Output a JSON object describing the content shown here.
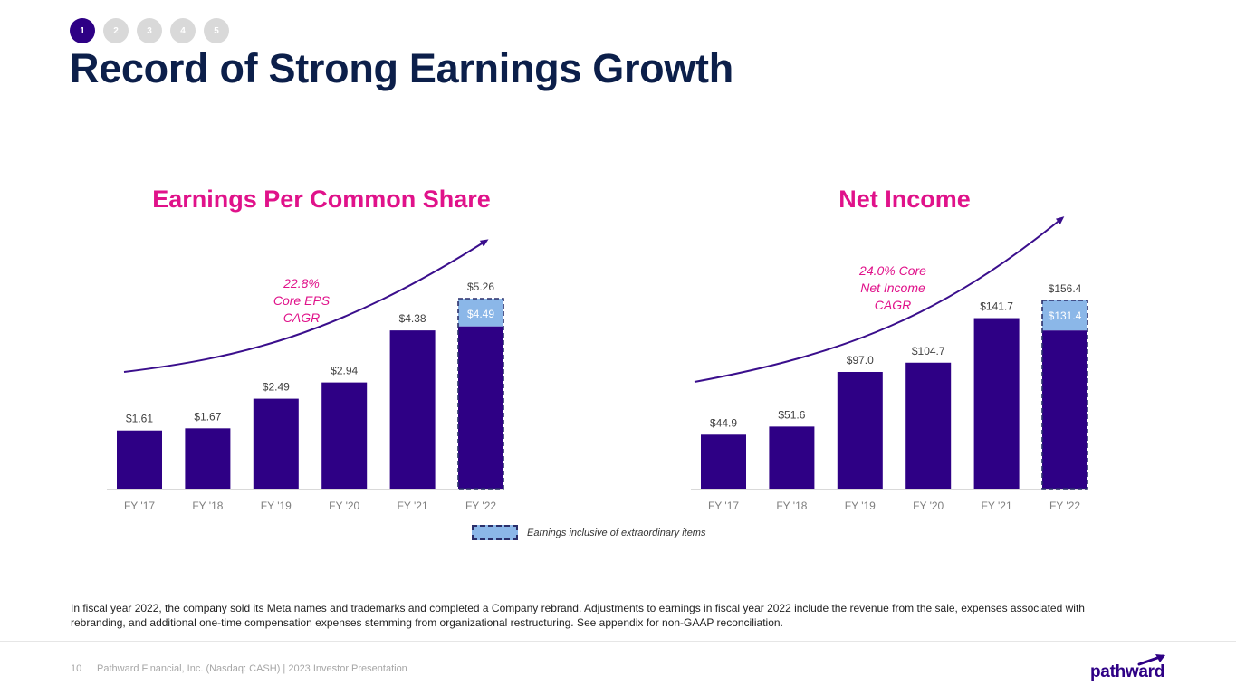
{
  "nav": {
    "steps": [
      "1",
      "2",
      "3",
      "4",
      "5"
    ],
    "active_index": 0
  },
  "page_title": "Record of Strong Earnings Growth",
  "colors": {
    "bar": "#2e0085",
    "highlight": "#8bb7e8",
    "accent": "#e0128a",
    "title": "#0c1f4a",
    "trend": "#3a0e8c"
  },
  "chart_data": [
    {
      "id": "eps",
      "type": "bar",
      "title": "Earnings Per Common Share",
      "categories": [
        "FY '17",
        "FY '18",
        "FY '19",
        "FY '20",
        "FY '21",
        "FY '22"
      ],
      "values": [
        1.61,
        1.67,
        2.49,
        2.94,
        4.38,
        5.26
      ],
      "value_labels": [
        "$1.61",
        "$1.67",
        "$2.49",
        "$2.94",
        "$4.38",
        "$5.26"
      ],
      "core_value": {
        "index": 5,
        "value": 4.49,
        "label": "$4.49"
      },
      "ylim": [
        0,
        5.26
      ],
      "annotation": {
        "lines": [
          "22.8%",
          "Core EPS",
          "CAGR"
        ]
      },
      "trend_arrow": true
    },
    {
      "id": "ni",
      "type": "bar",
      "title": "Net Income",
      "categories": [
        "FY '17",
        "FY '18",
        "FY '19",
        "FY '20",
        "FY '21",
        "FY '22"
      ],
      "values": [
        44.9,
        51.6,
        97.0,
        104.7,
        141.7,
        156.4
      ],
      "value_labels": [
        "$44.9",
        "$51.6",
        "$97.0",
        "$104.7",
        "$141.7",
        "$156.4"
      ],
      "core_value": {
        "index": 5,
        "value": 131.4,
        "label": "$131.4"
      },
      "ylim": [
        0,
        156.4
      ],
      "annotation": {
        "lines": [
          "24.0% Core",
          "Net Income",
          "CAGR"
        ]
      },
      "trend_arrow": true
    }
  ],
  "legend": {
    "label": "Earnings inclusive of extraordinary items"
  },
  "footnote": "In fiscal year 2022, the company sold its Meta names and trademarks and completed a Company rebrand. Adjustments to earnings in fiscal year 2022 include the revenue from the sale, expenses associated with rebranding, and additional one-time compensation expenses stemming from organizational restructuring.  See appendix for non-GAAP reconciliation.",
  "footer": {
    "page_number": "10",
    "text": "Pathward Financial, Inc. (Nasdaq: CASH) | 2023 Investor Presentation"
  },
  "logo": {
    "text": "pathward"
  }
}
